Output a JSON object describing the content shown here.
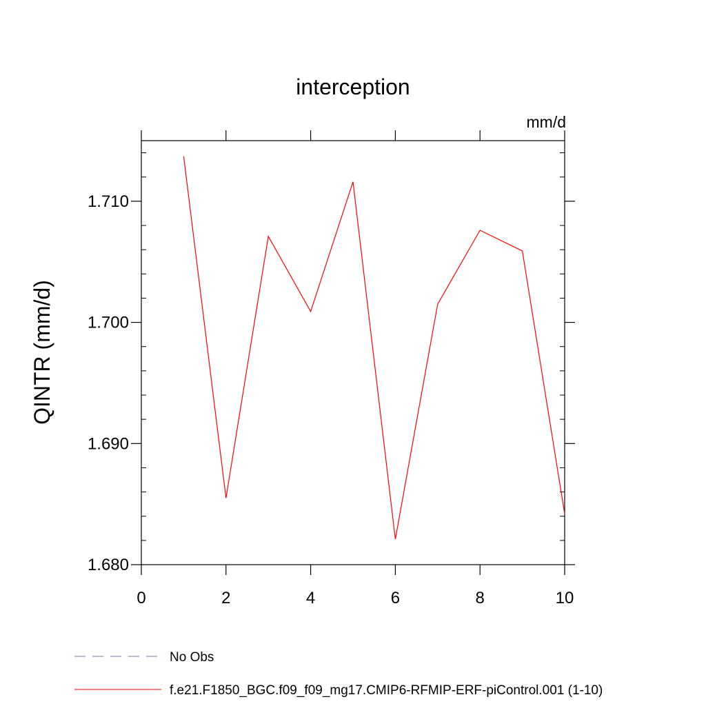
{
  "chart_data": {
    "type": "line",
    "title": "interception",
    "units_label": "mm/d",
    "ylabel": "QINTR  (mm/d)",
    "xlabel": "",
    "xlim": [
      0,
      10
    ],
    "ylim": [
      1.68,
      1.715
    ],
    "x_ticks": [
      0,
      2,
      4,
      6,
      8,
      10
    ],
    "x_tick_labels": [
      "0",
      "2",
      "4",
      "6",
      "8",
      "10"
    ],
    "y_ticks": [
      1.68,
      1.69,
      1.7,
      1.71
    ],
    "y_tick_labels": [
      "1.680",
      "1.690",
      "1.700",
      "1.710"
    ],
    "grid": false,
    "series": [
      {
        "name": "f.e21.F1850_BGC.f09_f09_mg17.CMIP6-RFMIP-ERF-piControl.001 (1-10)",
        "color": "#ff0000",
        "x": [
          1,
          2,
          3,
          4,
          5,
          6,
          7,
          8,
          9,
          10
        ],
        "y": [
          1.7137,
          1.6855,
          1.7071,
          1.7009,
          1.7116,
          1.6821,
          1.7015,
          1.7076,
          1.7059,
          1.6842
        ]
      }
    ],
    "legend": [
      {
        "label": "No Obs",
        "color": "#7b6fb0",
        "dashed": true
      },
      {
        "label": "f.e21.F1850_BGC.f09_f09_mg17.CMIP6-RFMIP-ERF-piControl.001 (1-10)",
        "color": "#ff0000",
        "dashed": false
      }
    ]
  }
}
